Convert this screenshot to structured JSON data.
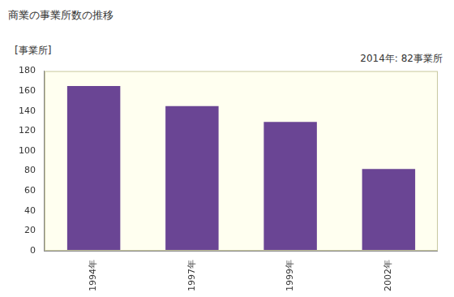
{
  "chart_data": {
    "type": "bar",
    "title": "商業の事業所数の推移",
    "ylabel": "[事業所]",
    "annotation": "2014年: 82事業所",
    "categories": [
      "1994年",
      "1997年",
      "1999年",
      "2002年"
    ],
    "values": [
      165,
      145,
      129,
      82
    ],
    "color": "#6a4594",
    "ylim": [
      0,
      180
    ],
    "yticks": [
      0,
      20,
      40,
      60,
      80,
      100,
      120,
      140,
      160,
      180
    ],
    "grid": false
  }
}
